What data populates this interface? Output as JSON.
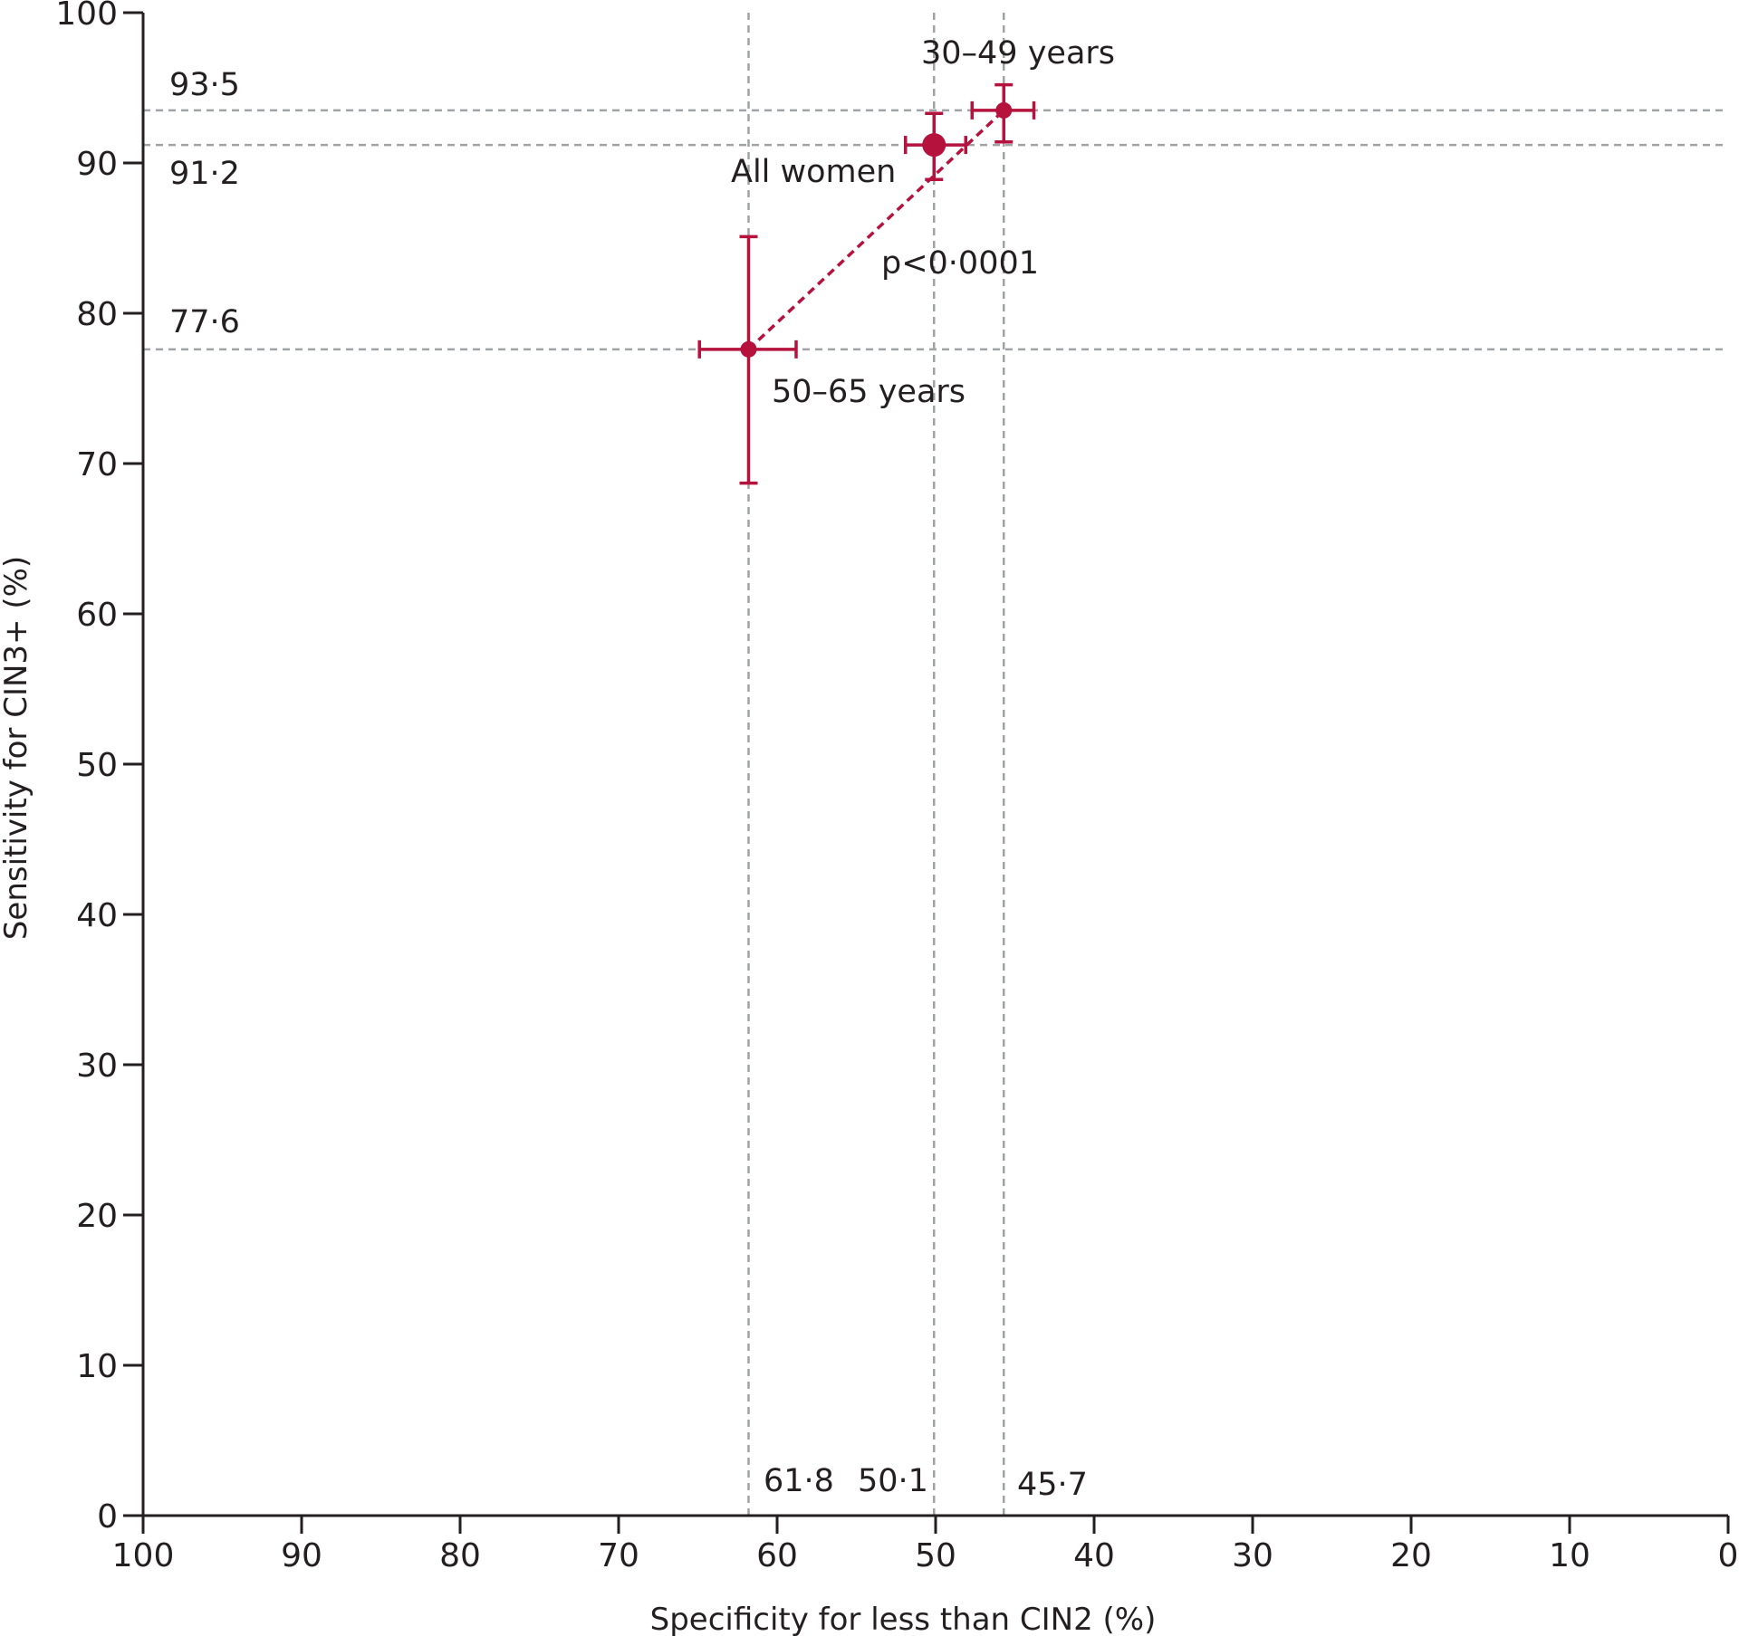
{
  "colors": {
    "series": "#b5123e",
    "reference_lines": "#9fa3a6",
    "axis": "#231f20"
  },
  "chart_data": {
    "type": "scatter",
    "title": "",
    "xlabel": "Specificity for less than CIN2 (%)",
    "ylabel": "Sensitivity for CIN3+ (%)",
    "xlim": [
      100,
      0
    ],
    "ylim": [
      0,
      100
    ],
    "x_reversed": true,
    "grid": false,
    "xticks": [
      100,
      90,
      80,
      70,
      60,
      50,
      40,
      30,
      20,
      10,
      0
    ],
    "yticks": [
      0,
      10,
      20,
      30,
      40,
      50,
      60,
      70,
      80,
      90,
      100
    ],
    "points": [
      {
        "label": "30–49 years",
        "x": 45.7,
        "y": 93.5,
        "xerr": [
          43.8,
          47.7
        ],
        "yerr": [
          91.4,
          95.2
        ],
        "size": "small"
      },
      {
        "label": "All women",
        "x": 50.1,
        "y": 91.2,
        "xerr": [
          48.1,
          51.9
        ],
        "yerr": [
          88.9,
          93.3
        ],
        "size": "large"
      },
      {
        "label": "50–65 years",
        "x": 61.8,
        "y": 77.6,
        "xerr": [
          58.8,
          64.9
        ],
        "yerr": [
          68.7,
          85.1
        ],
        "size": "small"
      }
    ],
    "trend_line": {
      "style": "dashed",
      "from": [
        61.8,
        77.6
      ],
      "to": [
        45.7,
        93.5
      ]
    },
    "annotation": "p<0·0001",
    "reference_lines": {
      "horizontal": [
        {
          "value": 93.5,
          "label": "93·5"
        },
        {
          "value": 91.2,
          "label": "91·2"
        },
        {
          "value": 77.6,
          "label": "77·6"
        }
      ],
      "vertical": [
        {
          "value": 61.8,
          "label": "61·8"
        },
        {
          "value": 50.1,
          "label": "50·1"
        },
        {
          "value": 45.7,
          "label": "45·7"
        }
      ]
    }
  }
}
